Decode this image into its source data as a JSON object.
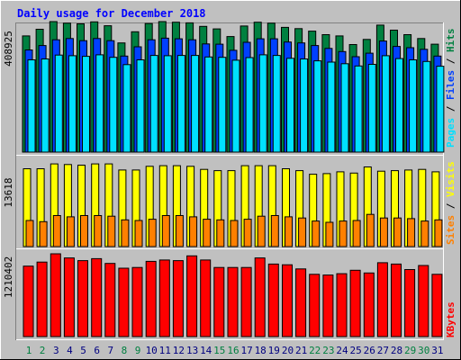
{
  "chart_data": {
    "type": "bar",
    "title": "Daily usage for December 2018",
    "categories": [
      "1",
      "2",
      "3",
      "4",
      "5",
      "6",
      "7",
      "8",
      "9",
      "10",
      "11",
      "12",
      "13",
      "14",
      "15",
      "16",
      "17",
      "18",
      "19",
      "20",
      "21",
      "22",
      "23",
      "24",
      "25",
      "26",
      "27",
      "28",
      "29",
      "30",
      "31"
    ],
    "weekend_days": [
      "1",
      "2",
      "8",
      "9",
      "15",
      "16",
      "22",
      "23",
      "29",
      "30"
    ],
    "panels": [
      {
        "label_parts": [
          "Pages",
          "Files",
          "Hits"
        ],
        "scale_label": "408925",
        "ymax": 408925,
        "series": [
          {
            "name": "Hits",
            "color": "#008040",
            "values": [
              364000,
              385000,
              409000,
              404000,
              402000,
              408000,
              396000,
              342000,
              377000,
              403000,
              409000,
              407000,
              405000,
              394000,
              386000,
              362000,
              395000,
              407000,
              404000,
              391000,
              387000,
              379000,
              368000,
              364000,
              337000,
              353000,
              398000,
              382000,
              368000,
              356000,
              338000
            ]
          },
          {
            "name": "Files",
            "color": "#0040ff",
            "values": [
              320000,
              334000,
              352000,
              356000,
              349000,
              356000,
              349000,
              301000,
              330000,
              352000,
              357000,
              355000,
              352000,
              339000,
              338000,
              319000,
              344000,
              355000,
              355000,
              345000,
              342000,
              334000,
              325000,
              315000,
              299000,
              310000,
              348000,
              331000,
              327000,
              322000,
              301000
            ]
          },
          {
            "name": "Pages",
            "color": "#00e0ff",
            "values": [
              289000,
              292000,
              304000,
              302000,
              300000,
              305000,
              297000,
              274000,
              289000,
              303000,
              302000,
              303000,
              303000,
              298000,
              297000,
              288000,
              296000,
              305000,
              303000,
              294000,
              292000,
              286000,
              282000,
              277000,
              270000,
              275000,
              302000,
              293000,
              289000,
              284000,
              269000
            ]
          }
        ]
      },
      {
        "label_parts": [
          "Sites",
          "Visits"
        ],
        "scale_label": "13618",
        "ymax": 13618,
        "series": [
          {
            "name": "Visits",
            "color": "#ffff00",
            "values": [
              12800,
              12800,
              13600,
              13500,
              13400,
              13600,
              13600,
              12600,
              12600,
              13200,
              13300,
              13300,
              13200,
              12700,
              12500,
              12500,
              13300,
              13300,
              13300,
              12800,
              12500,
              11900,
              12000,
              12300,
              12100,
              13100,
              12400,
              12500,
              12600,
              12700,
              12300
            ]
          },
          {
            "name": "Sites",
            "color": "#ff8000",
            "values": [
              4300,
              4100,
              5100,
              4900,
              5100,
              5100,
              5000,
              4400,
              4300,
              4500,
              5100,
              5100,
              4900,
              4500,
              4400,
              4300,
              4500,
              5000,
              5100,
              4900,
              4700,
              4200,
              4000,
              4200,
              4300,
              5300,
              4700,
              4700,
              4600,
              4200,
              4400
            ]
          }
        ]
      },
      {
        "label_parts": [
          "KBytes"
        ],
        "scale_label": "1210402",
        "ymax": 1210402,
        "series": [
          {
            "name": "KBytes",
            "color": "#ff0000",
            "values": [
              1030000,
              1090000,
              1210000,
              1150000,
              1110000,
              1140000,
              1070000,
              1000000,
              1010000,
              1100000,
              1120000,
              1110000,
              1180000,
              1120000,
              1010000,
              1010000,
              1010000,
              1150000,
              1060000,
              1050000,
              990000,
              910000,
              900000,
              920000,
              970000,
              930000,
              1080000,
              1060000,
              980000,
              1040000,
              910000
            ]
          }
        ]
      }
    ]
  },
  "colors": {
    "background": "#c0c0c0",
    "plot_background": "#c0c0c0",
    "title": "#0000ff",
    "weekday_label": "#000080",
    "weekend_label": "#008040",
    "separator": "#ffffff",
    "label_separator": "#000000"
  }
}
